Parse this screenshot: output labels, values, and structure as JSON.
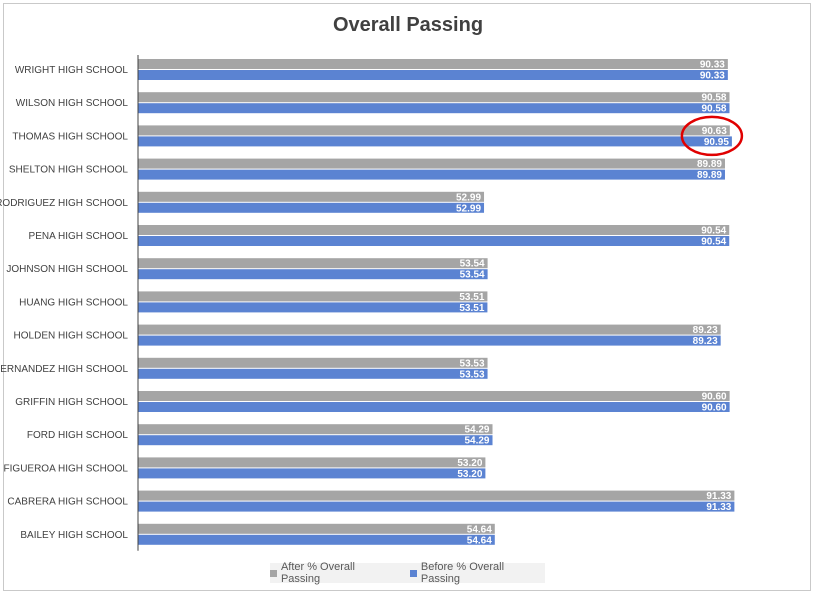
{
  "chart_data": {
    "type": "bar",
    "orientation": "horizontal",
    "title": "Overall Passing",
    "categories": [
      "WRIGHT HIGH SCHOOL",
      "WILSON HIGH SCHOOL",
      "THOMAS HIGH SCHOOL",
      "SHELTON HIGH SCHOOL",
      "RODRIGUEZ HIGH SCHOOL",
      "PENA HIGH SCHOOL",
      "JOHNSON HIGH SCHOOL",
      "HUANG HIGH SCHOOL",
      "HOLDEN HIGH SCHOOL",
      "HERNANDEZ HIGH SCHOOL",
      "GRIFFIN HIGH SCHOOL",
      "FORD HIGH SCHOOL",
      "FIGUEROA HIGH SCHOOL",
      "CABRERA HIGH SCHOOL",
      "BAILEY HIGH SCHOOL"
    ],
    "series": [
      {
        "name": "After % Overall Passing",
        "color": "#a5a5a5",
        "values": [
          90.33,
          90.58,
          90.63,
          89.89,
          52.99,
          90.54,
          53.54,
          53.51,
          89.23,
          53.53,
          90.6,
          54.29,
          53.2,
          91.33,
          54.64
        ],
        "labels": [
          "90.33",
          "90.58",
          "90.63",
          "89.89",
          "52.99",
          "90.54",
          "53.54",
          "53.51",
          "89.23",
          "53.53",
          "90.60",
          "54.29",
          "53.20",
          "91.33",
          "54.64"
        ]
      },
      {
        "name": "Before % Overall Passing",
        "color": "#5b83d2",
        "values": [
          90.33,
          90.58,
          90.95,
          89.89,
          52.99,
          90.54,
          53.54,
          53.51,
          89.23,
          53.53,
          90.6,
          54.29,
          53.2,
          91.33,
          54.64
        ],
        "labels": [
          "90.33",
          "90.58",
          "90.95",
          "89.89",
          "52.99",
          "90.54",
          "53.54",
          "53.51",
          "89.23",
          "53.53",
          "90.60",
          "54.29",
          "53.20",
          "91.33",
          "54.64"
        ]
      }
    ],
    "xlim": [
      0,
      100
    ],
    "grid": false,
    "legend_position": "bottom",
    "highlight": {
      "category": "THOMAS HIGH SCHOOL",
      "shape": "circle",
      "color": "#e00000"
    }
  }
}
